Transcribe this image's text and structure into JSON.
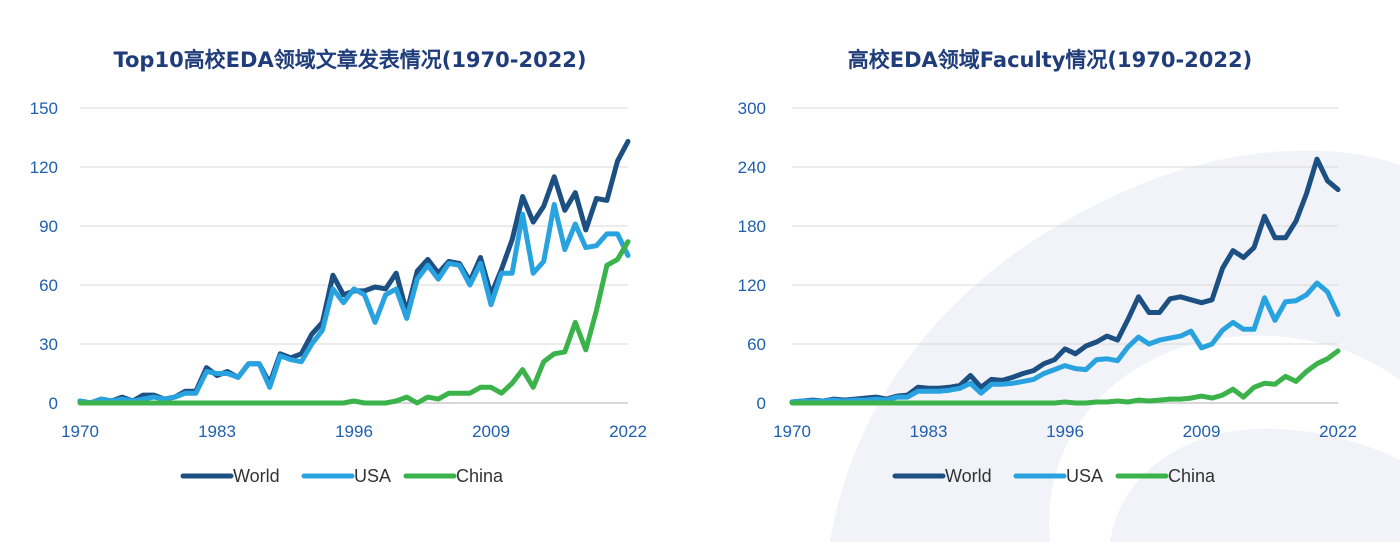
{
  "colors": {
    "world": "#1c4f82",
    "usa": "#29a3df",
    "china": "#3bb34a",
    "gridline": "#d9d9d9",
    "axis": "#bfbfbf",
    "tick_text": "#1f5fae",
    "title_text": "#1f3d7a"
  },
  "chart_data": [
    {
      "type": "line",
      "title": "Top10高校EDA领域文章发表情况(1970-2022)",
      "xlabel": "",
      "ylabel": "",
      "xlim": [
        1970,
        2022
      ],
      "ylim": [
        0,
        150
      ],
      "x_ticks": [
        1970,
        1983,
        1996,
        2009,
        2022
      ],
      "y_ticks": [
        0,
        30,
        60,
        90,
        120,
        150
      ],
      "grid": "horizontal",
      "legend_position": "bottom",
      "x": [
        1970,
        1971,
        1972,
        1973,
        1974,
        1975,
        1976,
        1977,
        1978,
        1979,
        1980,
        1981,
        1982,
        1983,
        1984,
        1985,
        1986,
        1987,
        1988,
        1989,
        1990,
        1991,
        1992,
        1993,
        1994,
        1995,
        1996,
        1997,
        1998,
        1999,
        2000,
        2001,
        2002,
        2003,
        2004,
        2005,
        2006,
        2007,
        2008,
        2009,
        2010,
        2011,
        2012,
        2013,
        2014,
        2015,
        2016,
        2017,
        2018,
        2019,
        2020,
        2021,
        2022
      ],
      "series": [
        {
          "name": "World",
          "color_key": "world",
          "values": [
            1,
            0,
            2,
            1,
            3,
            1,
            4,
            4,
            2,
            3,
            6,
            6,
            18,
            14,
            16,
            13,
            20,
            20,
            10,
            25,
            23,
            25,
            35,
            41,
            65,
            55,
            57,
            57,
            59,
            58,
            66,
            46,
            67,
            73,
            66,
            72,
            71,
            62,
            74,
            55,
            68,
            83,
            105,
            92,
            100,
            115,
            98,
            107,
            88,
            104,
            103,
            123,
            133
          ]
        },
        {
          "name": "USA",
          "color_key": "usa",
          "values": [
            1,
            0,
            2,
            1,
            2,
            1,
            2,
            3,
            2,
            3,
            5,
            5,
            16,
            15,
            15,
            13,
            20,
            20,
            8,
            24,
            22,
            21,
            30,
            37,
            58,
            51,
            58,
            55,
            41,
            55,
            58,
            43,
            63,
            70,
            63,
            71,
            70,
            60,
            71,
            50,
            66,
            66,
            96,
            66,
            72,
            101,
            78,
            91,
            79,
            80,
            86,
            86,
            75
          ]
        },
        {
          "name": "China",
          "color_key": "china",
          "values": [
            0,
            0,
            0,
            0,
            0,
            0,
            0,
            0,
            0,
            0,
            0,
            0,
            0,
            0,
            0,
            0,
            0,
            0,
            0,
            0,
            0,
            0,
            0,
            0,
            0,
            0,
            1,
            0,
            0,
            0,
            1,
            3,
            0,
            3,
            2,
            5,
            5,
            5,
            8,
            8,
            5,
            10,
            17,
            8,
            21,
            25,
            26,
            41,
            27,
            47,
            70,
            73,
            82
          ]
        }
      ]
    },
    {
      "type": "line",
      "title": "高校EDA领域Faculty情况(1970-2022)",
      "xlabel": "",
      "ylabel": "",
      "xlim": [
        1970,
        2022
      ],
      "ylim": [
        0,
        300
      ],
      "x_ticks": [
        1970,
        1983,
        1996,
        2009,
        2022
      ],
      "y_ticks": [
        0,
        60,
        120,
        180,
        240,
        300
      ],
      "grid": "horizontal",
      "legend_position": "bottom",
      "x": [
        1970,
        1971,
        1972,
        1973,
        1974,
        1975,
        1976,
        1977,
        1978,
        1979,
        1980,
        1981,
        1982,
        1983,
        1984,
        1985,
        1986,
        1987,
        1988,
        1989,
        1990,
        1991,
        1992,
        1993,
        1994,
        1995,
        1996,
        1997,
        1998,
        1999,
        2000,
        2001,
        2002,
        2003,
        2004,
        2005,
        2006,
        2007,
        2008,
        2009,
        2010,
        2011,
        2012,
        2013,
        2014,
        2015,
        2016,
        2017,
        2018,
        2019,
        2020,
        2021,
        2022
      ],
      "series": [
        {
          "name": "World",
          "color_key": "world",
          "values": [
            1,
            2,
            3,
            2,
            4,
            3,
            4,
            5,
            6,
            4,
            7,
            8,
            16,
            15,
            15,
            16,
            18,
            28,
            16,
            24,
            23,
            26,
            30,
            33,
            40,
            44,
            55,
            50,
            58,
            62,
            68,
            64,
            85,
            108,
            92,
            92,
            106,
            108,
            105,
            102,
            105,
            137,
            155,
            148,
            158,
            190,
            168,
            168,
            185,
            213,
            248,
            226,
            217
          ]
        },
        {
          "name": "USA",
          "color_key": "usa",
          "values": [
            1,
            2,
            2,
            2,
            3,
            2,
            3,
            3,
            4,
            3,
            6,
            6,
            12,
            12,
            12,
            13,
            15,
            20,
            10,
            19,
            19,
            20,
            22,
            24,
            30,
            34,
            38,
            35,
            34,
            44,
            45,
            43,
            57,
            67,
            60,
            64,
            66,
            68,
            73,
            56,
            60,
            74,
            82,
            75,
            75,
            107,
            84,
            103,
            104,
            110,
            122,
            113,
            90
          ]
        },
        {
          "name": "China",
          "color_key": "china",
          "values": [
            0,
            0,
            0,
            0,
            0,
            0,
            0,
            0,
            0,
            0,
            0,
            0,
            0,
            0,
            0,
            0,
            0,
            0,
            0,
            0,
            0,
            0,
            0,
            0,
            0,
            0,
            1,
            0,
            0,
            1,
            1,
            2,
            1,
            3,
            2,
            3,
            4,
            4,
            5,
            7,
            5,
            8,
            14,
            6,
            16,
            20,
            19,
            27,
            22,
            32,
            40,
            45,
            53
          ]
        }
      ]
    }
  ]
}
